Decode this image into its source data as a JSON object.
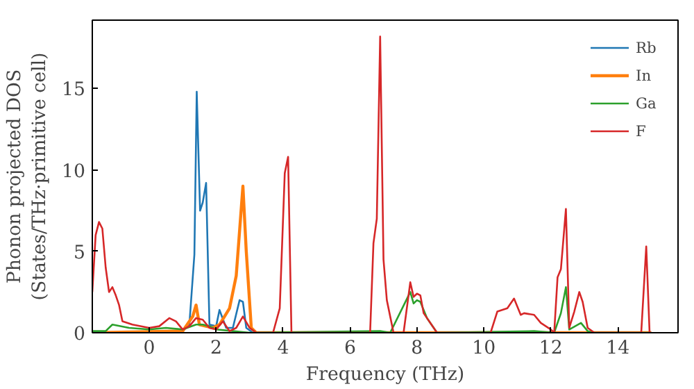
{
  "chart_data": {
    "type": "line",
    "xlabel": "Frequency (THz)",
    "ylabel": "Phonon projected DOS\n(States/THz·primitive cell)",
    "xlim": [
      -1.7,
      15.8
    ],
    "ylim": [
      0,
      19.2
    ],
    "xticks": [
      0,
      2,
      4,
      6,
      8,
      10,
      12,
      14
    ],
    "yticks": [
      0,
      5,
      10,
      15
    ],
    "legend": "top right",
    "grid": false,
    "series": [
      {
        "name": "Rb",
        "color": "#1f77b4",
        "x": [
          1.0,
          1.2,
          1.35,
          1.42,
          1.52,
          1.6,
          1.7,
          1.8,
          2.0,
          2.1,
          2.3,
          2.5,
          2.7,
          2.8,
          2.9,
          3.1,
          15.0
        ],
        "values": [
          0.1,
          0.5,
          4.8,
          14.8,
          7.5,
          8,
          9.2,
          0.5,
          0.4,
          1.4,
          0.3,
          0.3,
          2.0,
          1.9,
          0.3,
          0,
          0
        ]
      },
      {
        "name": "In",
        "color": "#ff7f0e",
        "x": [
          -1.7,
          1.0,
          1.3,
          1.4,
          1.5,
          1.9,
          2.1,
          2.4,
          2.6,
          2.8,
          2.9,
          3.05,
          3.2,
          15.0
        ],
        "values": [
          0,
          0.1,
          1.0,
          1.7,
          0.5,
          0.3,
          0.5,
          1.5,
          3.5,
          9,
          5,
          0.3,
          0,
          0
        ]
      },
      {
        "name": "Ga",
        "color": "#2ca02c",
        "x": [
          -1.7,
          -1.3,
          -1.1,
          -0.6,
          0,
          0.5,
          1.0,
          1.4,
          1.6,
          1.8,
          2.0,
          2.5,
          3.0,
          6.9,
          7.2,
          7.8,
          7.9,
          8.0,
          8.1,
          8.3,
          8.6,
          11.5,
          12.1,
          12.3,
          12.45,
          12.55,
          12.9,
          13.1,
          13.3,
          15.0
        ],
        "values": [
          0.1,
          0.1,
          0.5,
          0.3,
          0.2,
          0.3,
          0.2,
          0.5,
          0.5,
          0.4,
          0.2,
          0.1,
          0,
          0.1,
          0,
          2.5,
          1.8,
          2.0,
          1.9,
          0.9,
          0,
          0.1,
          0,
          1.2,
          2.8,
          0.2,
          0.6,
          0.1,
          0,
          0
        ]
      },
      {
        "name": "F",
        "color": "#d62728",
        "x": [
          -1.7,
          -1.6,
          -1.5,
          -1.4,
          -1.3,
          -1.2,
          -1.1,
          -1.0,
          -0.9,
          -0.8,
          -0.5,
          0,
          0.3,
          0.6,
          0.8,
          1.0,
          1.2,
          1.4,
          1.6,
          1.8,
          2.0,
          2.2,
          2.4,
          2.6,
          2.8,
          3.0,
          3.2,
          3.7,
          3.9,
          4.05,
          4.15,
          4.25,
          6.6,
          6.7,
          6.8,
          6.9,
          7.0,
          7.1,
          7.3,
          7.6,
          7.8,
          7.9,
          8.0,
          8.1,
          8.2,
          8.5,
          8.6,
          10.2,
          10.4,
          10.7,
          10.9,
          11.0,
          11.1,
          11.2,
          11.5,
          11.7,
          12.0,
          12.1,
          12.2,
          12.3,
          12.45,
          12.55,
          12.7,
          12.85,
          12.95,
          13.1,
          13.3,
          14.7,
          14.85,
          14.95,
          15.0
        ],
        "values": [
          2.5,
          6,
          6.8,
          6.4,
          4,
          2.5,
          2.8,
          2.3,
          1.7,
          0.7,
          0.5,
          0.3,
          0.4,
          0.9,
          0.7,
          0.2,
          0.4,
          0.9,
          0.8,
          0.3,
          0.2,
          0.7,
          0.1,
          0.3,
          1.0,
          0.3,
          0,
          0,
          1.5,
          9.8,
          10.8,
          0,
          0,
          5.5,
          7,
          18.2,
          4.5,
          2,
          0,
          0,
          3.1,
          2.2,
          2.4,
          2.3,
          1.2,
          0.3,
          0,
          0,
          1.3,
          1.5,
          2.1,
          1.6,
          1.1,
          1.2,
          1.1,
          0.6,
          0.2,
          0,
          3.4,
          3.9,
          7.6,
          0.3,
          1.3,
          2.5,
          1.9,
          0.3,
          0,
          0,
          5.3,
          0,
          0
        ]
      }
    ]
  }
}
